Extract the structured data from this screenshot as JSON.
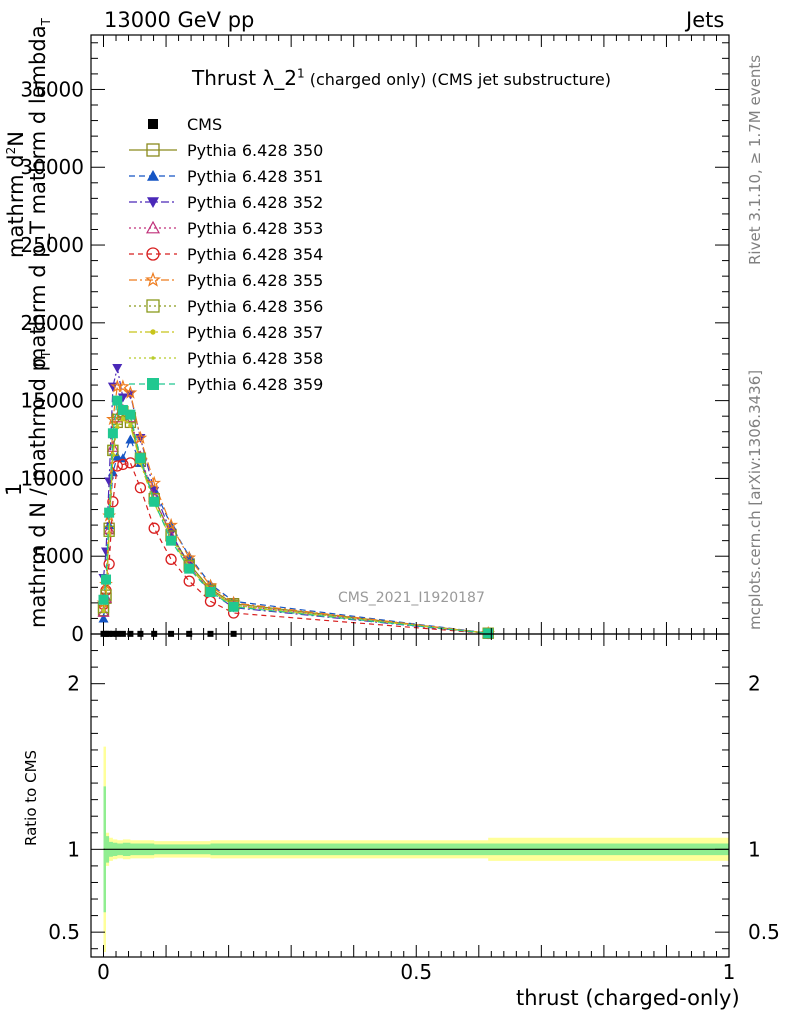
{
  "header": {
    "energy_label": "13000 GeV pp",
    "process_label": "Jets",
    "title_main": "Thrust λ_2",
    "title_sup": "1",
    "title_rest": " (charged only) (CMS jet substructure)"
  },
  "side_labels": {
    "rivet": "Rivet 3.1.10, ≥ 1.7M events",
    "mcplots": "mcplots.cern.ch [arXiv:1306.3436]",
    "analysis": "CMS_2021_I1920187"
  },
  "ylabel": {
    "line1": "mathrm d",
    "line1_sup": "2",
    "line1_tail": "N",
    "line2": "mathrm d p_T mathrm d lambda",
    "line2_sub": "T",
    "one": "1",
    "denominator": "mathrm d N / mathrm d p",
    "denominator_sub": "T"
  },
  "legend": [
    {
      "name": "CMS",
      "color": "#000000",
      "marker": "square-filled",
      "dash": "none"
    },
    {
      "name": "Pythia 6.428 350",
      "color": "#8a8a1c",
      "marker": "square-open",
      "dash": "solid"
    },
    {
      "name": "Pythia 6.428 351",
      "color": "#1555c4",
      "marker": "triangle-up-filled",
      "dash": "6,4"
    },
    {
      "name": "Pythia 6.428 352",
      "color": "#4a28b8",
      "marker": "triangle-down-filled",
      "dash": "8,3,2,3"
    },
    {
      "name": "Pythia 6.428 353",
      "color": "#c0307a",
      "marker": "triangle-up-open",
      "dash": "2,3"
    },
    {
      "name": "Pythia 6.428 354",
      "color": "#d81e1e",
      "marker": "circle-open",
      "dash": "5,4"
    },
    {
      "name": "Pythia 6.428 355",
      "color": "#ee7c1e",
      "marker": "star-open",
      "dash": "8,3,2,3"
    },
    {
      "name": "Pythia 6.428 356",
      "color": "#8a9a1c",
      "marker": "square-open",
      "dash": "2,3"
    },
    {
      "name": "Pythia 6.428 357",
      "color": "#c8c41a",
      "marker": "dot",
      "dash": "8,3,2,3"
    },
    {
      "name": "Pythia 6.428 358",
      "color": "#b8cc2a",
      "marker": "dot-small",
      "dash": "2,3"
    },
    {
      "name": "Pythia 6.428 359",
      "color": "#20c890",
      "marker": "square-filled",
      "dash": "6,4"
    }
  ],
  "chart_data": {
    "type": "line",
    "xlabel": "thrust (charged-only)",
    "ratio_ylabel": "Ratio to CMS",
    "xlim": [
      -0.02,
      1.0
    ],
    "main_ylim": [
      0,
      38500
    ],
    "main_yticks": [
      0,
      5000,
      10000,
      15000,
      20000,
      25000,
      30000,
      35000
    ],
    "main_yticklabels": [
      "0",
      "5000",
      "10000",
      "15000",
      "20000",
      "25000",
      "30000",
      "35000"
    ],
    "ratio_ylim": [
      0.35,
      2.3
    ],
    "ratio_yticks": [
      0.5,
      1,
      2
    ],
    "ratio_yticklabels": [
      "0.5",
      "1",
      "2"
    ],
    "xticks": [
      0,
      0.5,
      1
    ],
    "xticklabels": [
      "0",
      "0.5",
      "1"
    ],
    "x": [
      0.0,
      0.004,
      0.009,
      0.015,
      0.022,
      0.031,
      0.043,
      0.059,
      0.081,
      0.108,
      0.137,
      0.171,
      0.208,
      0.615
    ],
    "series": [
      {
        "name": "CMS",
        "values": [
          10,
          10,
          10,
          10,
          10,
          10,
          10,
          10,
          10,
          10,
          10,
          10,
          10,
          null
        ]
      },
      {
        "name": "Pythia 6.428 350",
        "values": [
          1500,
          2300,
          6800,
          11800,
          13600,
          14100,
          13600,
          11100,
          8700,
          6400,
          4500,
          2900,
          1950,
          50
        ]
      },
      {
        "name": "Pythia 6.428 351",
        "values": [
          1000,
          2400,
          7000,
          10400,
          11400,
          11300,
          12500,
          11000,
          9300,
          7000,
          5000,
          3200,
          2100,
          60
        ]
      },
      {
        "name": "Pythia 6.428 352",
        "values": [
          3600,
          5300,
          9800,
          15900,
          17100,
          15200,
          15400,
          12600,
          9200,
          6500,
          4400,
          2700,
          1700,
          40
        ]
      },
      {
        "name": "Pythia 6.428 353",
        "values": [
          1400,
          2300,
          6700,
          12000,
          13900,
          14400,
          13900,
          11400,
          8800,
          6300,
          4300,
          2800,
          1850,
          50
        ]
      },
      {
        "name": "Pythia 6.428 354",
        "values": [
          1900,
          2800,
          4500,
          8500,
          10800,
          10900,
          11000,
          9400,
          6800,
          4800,
          3400,
          2100,
          1350,
          30
        ]
      },
      {
        "name": "Pythia 6.428 355",
        "values": [
          2000,
          3200,
          7600,
          13800,
          15900,
          15900,
          15500,
          12600,
          9700,
          7000,
          4900,
          3100,
          2000,
          50
        ]
      },
      {
        "name": "Pythia 6.428 356",
        "values": [
          1700,
          2500,
          6600,
          11800,
          13800,
          14300,
          13900,
          11300,
          8700,
          6300,
          4400,
          2800,
          1850,
          50
        ]
      },
      {
        "name": "Pythia 6.428 357",
        "values": [
          1500,
          2300,
          6400,
          11500,
          13300,
          13800,
          13400,
          11000,
          8400,
          6100,
          4300,
          2800,
          1800,
          50
        ]
      },
      {
        "name": "Pythia 6.428 358",
        "values": [
          1550,
          2350,
          6500,
          11600,
          13400,
          13900,
          13500,
          11100,
          8500,
          6200,
          4350,
          2850,
          1850,
          50
        ]
      },
      {
        "name": "Pythia 6.428 359",
        "values": [
          2200,
          3500,
          7800,
          12900,
          15000,
          14400,
          14100,
          11300,
          8500,
          6000,
          4200,
          2700,
          1750,
          40
        ]
      }
    ],
    "ratio_band_x": [
      0.0,
      0.004,
      0.009,
      0.015,
      0.022,
      0.031,
      0.043,
      0.059,
      0.081,
      0.108,
      0.137,
      0.171,
      0.208,
      0.615,
      1.0
    ],
    "ratio_band_inner": [
      0.38,
      0.08,
      0.045,
      0.04,
      0.035,
      0.04,
      0.035,
      0.035,
      0.03,
      0.03,
      0.03,
      0.035,
      0.035,
      0.035,
      0.035
    ],
    "ratio_band_outer": [
      0.62,
      0.1,
      0.07,
      0.06,
      0.055,
      0.06,
      0.055,
      0.055,
      0.05,
      0.05,
      0.05,
      0.055,
      0.055,
      0.07,
      0.07
    ]
  }
}
